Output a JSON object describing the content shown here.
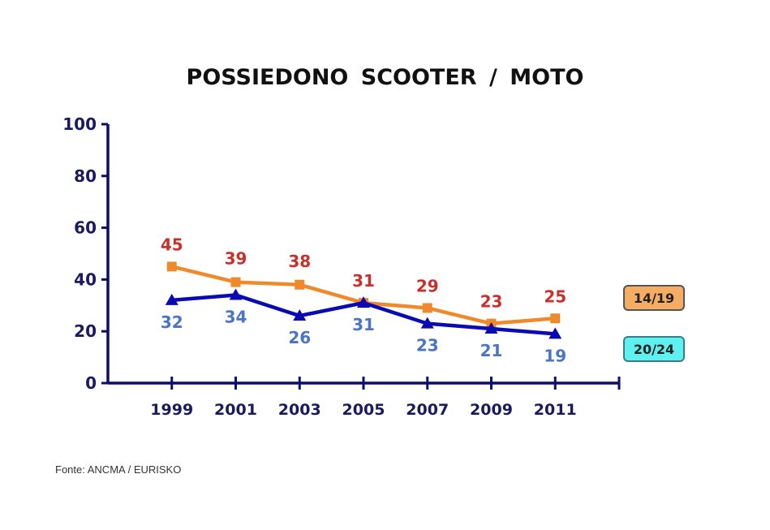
{
  "title": "POSSIEDONO  SCOOTER / MOTO",
  "source": "Fonte: ANCMA / EURISKO",
  "legend": [
    {
      "label": "14/19",
      "color": "#f4ad63"
    },
    {
      "label": "20/24",
      "color": "#5ff0f0"
    }
  ],
  "colors": {
    "axis": "#0d0d6b",
    "series_14_19_line": "#ee8a2b",
    "series_20_24_line": "#0a0ab4",
    "label_14_19": "#c8302c",
    "label_20_24": "#4a74c4"
  },
  "chart_data": {
    "type": "line",
    "title": "POSSIEDONO  SCOOTER / MOTO",
    "xlabel": "",
    "ylabel": "",
    "ylim": [
      0,
      100
    ],
    "yticks": [
      0,
      20,
      40,
      60,
      80,
      100
    ],
    "categories": [
      "1999",
      "2001",
      "2003",
      "2005",
      "2007",
      "2009",
      "2011"
    ],
    "series": [
      {
        "name": "14/19",
        "marker": "square",
        "values": [
          45,
          39,
          38,
          31,
          29,
          23,
          25
        ]
      },
      {
        "name": "20/24",
        "marker": "triangle",
        "values": [
          32,
          34,
          26,
          31,
          23,
          21,
          19
        ]
      }
    ],
    "grid": false,
    "legend_position": "right",
    "annotations": [
      "Fonte: ANCMA / EURISKO"
    ]
  }
}
